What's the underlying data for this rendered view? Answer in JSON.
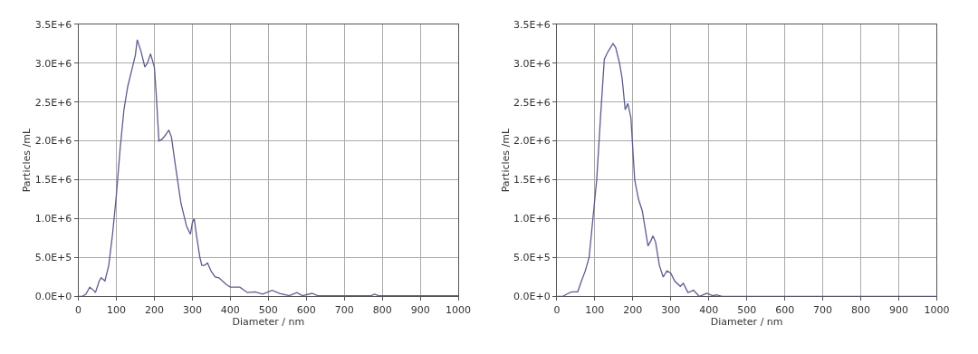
{
  "chart_data": [
    {
      "type": "line",
      "xlabel": "Diameter / nm",
      "ylabel": "Particles /mL",
      "xlim": [
        0,
        1000
      ],
      "ylim": [
        0,
        3500000
      ],
      "xticks": [
        0,
        100,
        200,
        300,
        400,
        500,
        600,
        700,
        800,
        900,
        1000
      ],
      "yticks": [
        {
          "value": 0,
          "label": "0.0E+0"
        },
        {
          "value": 500000,
          "label": "5.0E+5"
        },
        {
          "value": 1000000,
          "label": "1.0E+6"
        },
        {
          "value": 1500000,
          "label": "1.5E+6"
        },
        {
          "value": 2000000,
          "label": "2.0E+6"
        },
        {
          "value": 2500000,
          "label": "2.5E+6"
        },
        {
          "value": 3000000,
          "label": "3.0E+6"
        },
        {
          "value": 3500000,
          "label": "3.5E+6"
        }
      ],
      "grid": true,
      "line_style": "solid",
      "marker": "none",
      "series": [
        {
          "color": "#5c5c8e",
          "x": [
            0,
            10,
            20,
            30,
            40,
            45,
            55,
            60,
            70,
            80,
            90,
            100,
            110,
            120,
            130,
            140,
            150,
            155,
            165,
            175,
            182,
            190,
            200,
            205,
            212,
            220,
            230,
            238,
            245,
            255,
            270,
            285,
            295,
            300,
            305,
            312,
            320,
            325,
            332,
            340,
            350,
            360,
            370,
            390,
            400,
            425,
            445,
            465,
            485,
            510,
            530,
            555,
            575,
            590,
            615,
            630,
            700,
            770,
            780,
            790,
            1000
          ],
          "values": [
            0,
            0,
            30000,
            120000,
            80000,
            50000,
            200000,
            240000,
            200000,
            400000,
            800000,
            1300000,
            1900000,
            2400000,
            2700000,
            2900000,
            3100000,
            3300000,
            3150000,
            2950000,
            3000000,
            3120000,
            2950000,
            2600000,
            2000000,
            2020000,
            2080000,
            2140000,
            2050000,
            1700000,
            1200000,
            900000,
            800000,
            950000,
            1000000,
            750000,
            500000,
            400000,
            400000,
            430000,
            320000,
            250000,
            240000,
            150000,
            120000,
            120000,
            50000,
            60000,
            30000,
            80000,
            40000,
            10000,
            50000,
            10000,
            40000,
            10000,
            10000,
            10000,
            30000,
            10000,
            10000
          ]
        }
      ]
    },
    {
      "type": "line",
      "xlabel": "Diameter / nm",
      "ylabel": "Particles /mL",
      "xlim": [
        0,
        1000
      ],
      "ylim": [
        0,
        3500000
      ],
      "xticks": [
        0,
        100,
        200,
        300,
        400,
        500,
        600,
        700,
        800,
        900,
        1000
      ],
      "yticks": [
        {
          "value": 0,
          "label": "0.0E+0"
        },
        {
          "value": 500000,
          "label": "5.0E+5"
        },
        {
          "value": 1000000,
          "label": "1.0E+6"
        },
        {
          "value": 1500000,
          "label": "1.5E+6"
        },
        {
          "value": 2000000,
          "label": "2.0E+6"
        },
        {
          "value": 2500000,
          "label": "2.5E+6"
        },
        {
          "value": 3000000,
          "label": "3.0E+6"
        },
        {
          "value": 3500000,
          "label": "3.5E+6"
        }
      ],
      "grid": true,
      "line_style": "solid",
      "marker": "none",
      "series": [
        {
          "color": "#5c5c8e",
          "x": [
            0,
            15,
            30,
            40,
            55,
            65,
            75,
            85,
            95,
            105,
            115,
            125,
            135,
            148,
            155,
            165,
            172,
            180,
            187,
            195,
            205,
            215,
            225,
            240,
            248,
            253,
            260,
            270,
            280,
            290,
            300,
            310,
            325,
            333,
            345,
            360,
            375,
            395,
            410,
            420,
            435,
            1000
          ],
          "values": [
            0,
            0,
            40000,
            60000,
            60000,
            200000,
            330000,
            500000,
            1000000,
            1500000,
            2300000,
            3050000,
            3150000,
            3250000,
            3200000,
            3000000,
            2800000,
            2400000,
            2480000,
            2300000,
            1500000,
            1250000,
            1100000,
            650000,
            720000,
            780000,
            700000,
            400000,
            250000,
            330000,
            300000,
            200000,
            130000,
            170000,
            50000,
            80000,
            0,
            40000,
            10000,
            20000,
            0,
            0
          ]
        }
      ]
    }
  ]
}
